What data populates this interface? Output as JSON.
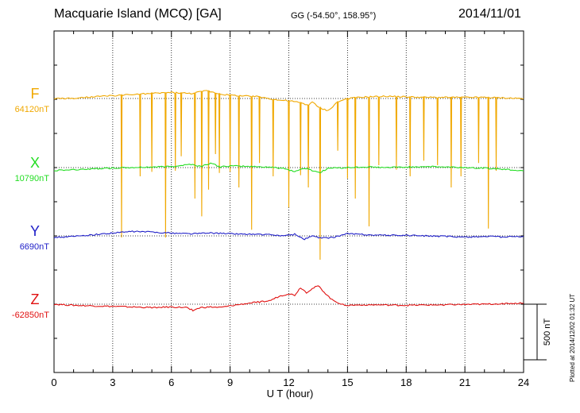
{
  "header": {
    "title": "Macquarie Island (MCQ)  [GA]",
    "coords": "GG (-54.50°, 158.95°)",
    "date": "2014/11/01"
  },
  "plotted_note": "Plotted at 2014/12/02 01:32 UT",
  "chart_data": {
    "type": "line",
    "xlabel": "U T (hour)",
    "xlim": [
      0,
      24
    ],
    "x_ticks": [
      "0",
      "3",
      "6",
      "9",
      "12",
      "15",
      "18",
      "21",
      "24"
    ],
    "grid": "dotted vertical at every 3 hours",
    "scale_bar": {
      "label": "500 nT",
      "value_nT": 500
    },
    "series": [
      {
        "name": "F",
        "baseline_label": "64120nT",
        "baseline_nT": 64120,
        "color": "#f0a800",
        "x": [
          0,
          1,
          2,
          3,
          4,
          5,
          6,
          7,
          7.8,
          8.5,
          9,
          10,
          10.5,
          11,
          11.5,
          12,
          12.5,
          13,
          13.2,
          13.5,
          14,
          14.5,
          15,
          16,
          17,
          18,
          19,
          20,
          21,
          22,
          23,
          24
        ],
        "y": [
          0,
          0,
          15,
          25,
          35,
          45,
          55,
          45,
          70,
          40,
          30,
          20,
          15,
          0,
          -15,
          -20,
          -35,
          -60,
          -25,
          -80,
          -110,
          -30,
          0,
          15,
          20,
          15,
          10,
          10,
          10,
          10,
          5,
          0
        ],
        "spikes": [
          {
            "x": 3.45,
            "y": -1250
          },
          {
            "x": 4.4,
            "y": -700
          },
          {
            "x": 5.0,
            "y": -660
          },
          {
            "x": 5.7,
            "y": -1250
          },
          {
            "x": 6.2,
            "y": -650
          },
          {
            "x": 6.5,
            "y": -520
          },
          {
            "x": 7.2,
            "y": -900
          },
          {
            "x": 7.55,
            "y": -1060
          },
          {
            "x": 7.9,
            "y": -820
          },
          {
            "x": 8.25,
            "y": -500
          },
          {
            "x": 8.45,
            "y": -670
          },
          {
            "x": 9.0,
            "y": -660
          },
          {
            "x": 9.45,
            "y": -800
          },
          {
            "x": 10.1,
            "y": -1180
          },
          {
            "x": 10.5,
            "y": -580
          },
          {
            "x": 11.2,
            "y": -700
          },
          {
            "x": 12.0,
            "y": -980
          },
          {
            "x": 12.6,
            "y": -690
          },
          {
            "x": 13.0,
            "y": -800
          },
          {
            "x": 13.6,
            "y": -1450
          },
          {
            "x": 14.5,
            "y": -470
          },
          {
            "x": 15.0,
            "y": -720
          },
          {
            "x": 15.4,
            "y": -900
          },
          {
            "x": 16.1,
            "y": -1150
          },
          {
            "x": 16.6,
            "y": -600
          },
          {
            "x": 17.5,
            "y": -640
          },
          {
            "x": 18.2,
            "y": -700
          },
          {
            "x": 18.9,
            "y": -560
          },
          {
            "x": 19.6,
            "y": -600
          },
          {
            "x": 20.3,
            "y": -800
          },
          {
            "x": 20.8,
            "y": -700
          },
          {
            "x": 21.7,
            "y": -580
          },
          {
            "x": 22.2,
            "y": -1170
          },
          {
            "x": 22.6,
            "y": -650
          }
        ]
      },
      {
        "name": "X",
        "baseline_label": "10790nT",
        "baseline_nT": 10790,
        "color": "#22dd22",
        "x": [
          0,
          1,
          2,
          3,
          4,
          5,
          6,
          7,
          7.5,
          8,
          8.5,
          9,
          10,
          11,
          11.8,
          12.3,
          12.8,
          13.2,
          13.6,
          14,
          15,
          16,
          17,
          18,
          19,
          20,
          21,
          22,
          23,
          24
        ],
        "y": [
          -25,
          -20,
          -10,
          -5,
          0,
          5,
          10,
          30,
          10,
          40,
          5,
          15,
          10,
          5,
          -10,
          -35,
          -5,
          -25,
          -45,
          -5,
          0,
          5,
          0,
          5,
          10,
          5,
          0,
          -5,
          -15,
          -30
        ]
      },
      {
        "name": "Y",
        "baseline_label": "6690nT",
        "baseline_nT": 6690,
        "color": "#2020c8",
        "x": [
          0,
          1,
          2,
          3,
          4,
          5,
          6,
          7,
          8,
          9,
          10,
          11,
          11.8,
          12.3,
          12.8,
          13.2,
          13.6,
          14.2,
          15,
          16,
          17,
          18,
          19,
          20,
          21,
          22,
          23,
          24
        ],
        "y": [
          -15,
          -5,
          10,
          25,
          40,
          35,
          25,
          20,
          25,
          20,
          15,
          10,
          0,
          15,
          -30,
          0,
          -20,
          -15,
          20,
          10,
          5,
          5,
          0,
          -5,
          -10,
          -5,
          -10,
          -5
        ]
      },
      {
        "name": "Z",
        "baseline_label": "-62850nT",
        "baseline_nT": -62850,
        "color": "#e01010",
        "x": [
          0,
          1,
          2,
          3,
          4,
          5,
          6,
          6.8,
          7.1,
          7.5,
          8,
          8.5,
          9,
          10,
          11,
          11.5,
          12,
          12.3,
          12.6,
          12.9,
          13.2,
          13.5,
          13.8,
          14.2,
          14.7,
          15,
          16,
          18,
          20,
          22,
          24
        ],
        "y": [
          0,
          -10,
          -15,
          -20,
          -25,
          -30,
          -25,
          -30,
          -55,
          -30,
          -25,
          -30,
          -15,
          10,
          30,
          70,
          95,
          80,
          150,
          105,
          140,
          165,
          110,
          40,
          0,
          -10,
          -5,
          -10,
          -5,
          0,
          10
        ]
      }
    ]
  }
}
